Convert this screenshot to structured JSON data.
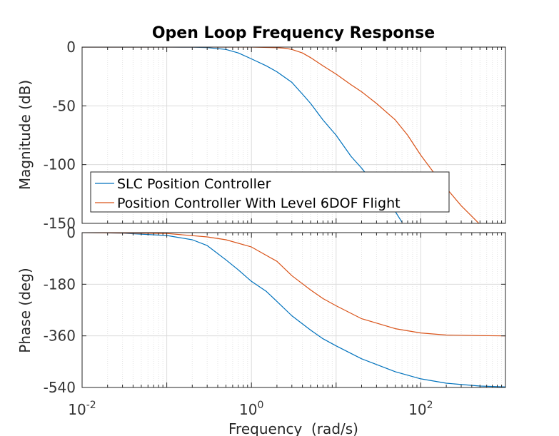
{
  "chart_data": [
    {
      "type": "line",
      "title": "Open Loop Frequency Response",
      "xlabel": "",
      "ylabel": "Magnitude (dB)",
      "xscale": "log",
      "xlim": [
        0.01,
        1000
      ],
      "ylim": [
        -150,
        0
      ],
      "yticks": [
        0,
        -50,
        -100,
        -150
      ],
      "ytick_labels": [
        "0",
        "-50",
        "-100",
        "-150"
      ],
      "grid": true,
      "legend_location": "lower-left",
      "series": [
        {
          "name": "SLC Position Controller",
          "color": "#0072BD",
          "x": [
            0.01,
            0.1,
            0.2,
            0.3,
            0.5,
            0.7,
            1,
            1.5,
            2,
            3,
            4,
            5,
            7,
            10,
            15,
            20,
            30,
            40,
            50,
            60
          ],
          "y": [
            0,
            0,
            -0.1,
            -0.4,
            -2,
            -5,
            -10,
            -16,
            -21,
            -30,
            -40,
            -48,
            -62,
            -75,
            -93,
            -103,
            -119,
            -131,
            -140,
            -149
          ]
        },
        {
          "name": "Position Controller With Level 6DOF Flight",
          "color": "#D95319",
          "x": [
            0.01,
            1,
            2,
            2.5,
            3,
            4,
            5,
            7,
            10,
            15,
            20,
            30,
            50,
            70,
            100,
            150,
            200,
            300,
            400,
            500
          ],
          "y": [
            0,
            0,
            -0.5,
            -1,
            -2,
            -5,
            -9,
            -16,
            -23,
            -32,
            -38,
            -48,
            -62,
            -75,
            -92,
            -109,
            -120,
            -135,
            -144,
            -151
          ]
        }
      ]
    },
    {
      "type": "line",
      "title": "",
      "xlabel": "Frequency  (rad/s)",
      "ylabel": "Phase (deg)",
      "xscale": "log",
      "xlim": [
        0.01,
        1000
      ],
      "ylim": [
        -540,
        0
      ],
      "yticks": [
        0,
        -180,
        -360,
        -540
      ],
      "ytick_labels": [
        "0",
        "-180",
        "-360",
        "-540"
      ],
      "xticks": [
        0.01,
        1,
        100
      ],
      "xtick_labels": [
        {
          "base": "10",
          "exp": "-2"
        },
        {
          "base": "10",
          "exp": "0"
        },
        {
          "base": "10",
          "exp": "2"
        }
      ],
      "grid": true,
      "series": [
        {
          "name": "SLC Position Controller",
          "color": "#0072BD",
          "x": [
            0.01,
            0.03,
            0.1,
            0.2,
            0.3,
            0.5,
            0.7,
            1,
            1.5,
            2,
            3,
            5,
            7,
            10,
            20,
            50,
            100,
            200,
            500,
            1000
          ],
          "y": [
            0,
            -2,
            -10,
            -25,
            -45,
            -95,
            -130,
            -170,
            -205,
            -240,
            -290,
            -340,
            -370,
            -395,
            -440,
            -485,
            -510,
            -525,
            -535,
            -538
          ]
        },
        {
          "name": "Position Controller With Level 6DOF Flight",
          "color": "#D95319",
          "x": [
            0.01,
            0.1,
            0.3,
            0.5,
            1,
            2,
            3,
            5,
            7,
            10,
            20,
            50,
            100,
            200,
            500,
            1000
          ],
          "y": [
            0,
            -3,
            -15,
            -25,
            -50,
            -100,
            -150,
            -200,
            -230,
            -255,
            -300,
            -335,
            -350,
            -357,
            -359,
            -360
          ]
        }
      ]
    }
  ]
}
